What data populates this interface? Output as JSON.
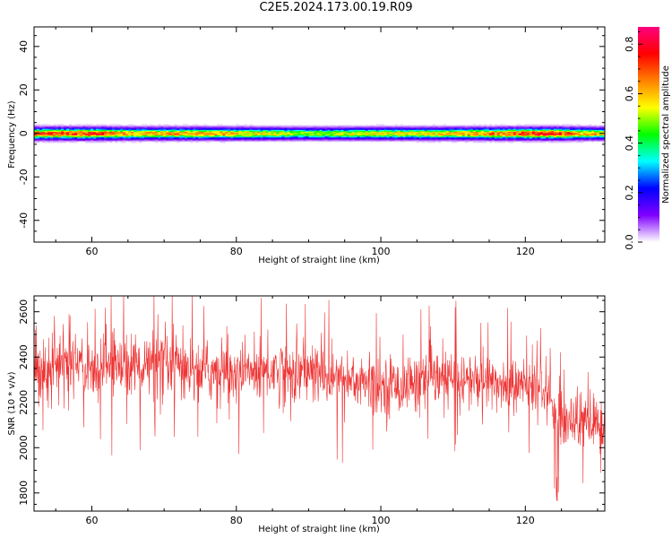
{
  "title": "C2E5.2024.173.00.19.R09",
  "chart_data": [
    {
      "type": "heatmap",
      "title": "C2E5.2024.173.00.19.R09",
      "xlabel": "Height of straight line (km)",
      "ylabel": "Frequency (Hz)",
      "xlim": [
        52,
        131
      ],
      "ylim": [
        -50,
        49
      ],
      "x_ticks": [
        "60",
        "80",
        "100",
        "120"
      ],
      "y_ticks": [
        "40",
        "20",
        "0",
        "-20",
        "-40"
      ],
      "grid": false,
      "signal_band_hz": [
        -4,
        4
      ],
      "intensity_profile": {
        "x": [
          52,
          60,
          66,
          72,
          78,
          84,
          88,
          92,
          96,
          100,
          104,
          110,
          116,
          120,
          124,
          128,
          131
        ],
        "peak": [
          0.7,
          0.72,
          0.6,
          0.62,
          0.6,
          0.55,
          0.5,
          0.48,
          0.52,
          0.55,
          0.55,
          0.58,
          0.66,
          0.7,
          0.75,
          0.6,
          0.55
        ]
      },
      "colorbar": {
        "label": "Normalized spectral amplitude",
        "range": [
          0.0,
          0.87
        ],
        "ticks": [
          "0.0",
          "0.2",
          "0.4",
          "0.6",
          "0.8"
        ],
        "colors": [
          "#ffffff",
          "#8000ff",
          "#0000ff",
          "#00ffff",
          "#00ff00",
          "#ffff00",
          "#ff8000",
          "#ff0000",
          "#ff0080"
        ]
      }
    },
    {
      "type": "line",
      "xlabel": "Height of straight line (km)",
      "ylabel": "SNR (10 * v/v)",
      "xlim": [
        52,
        131
      ],
      "ylim": [
        1720,
        2670
      ],
      "x_ticks": [
        "60",
        "80",
        "100",
        "120"
      ],
      "y_ticks": [
        "2600",
        "2400",
        "2200",
        "2000",
        "1800"
      ],
      "grid": false,
      "series": [
        {
          "color": "#ee3333",
          "x": [
            52,
            56,
            60,
            64,
            68,
            72,
            76,
            80,
            84,
            88,
            92,
            96,
            100,
            104,
            108,
            112,
            116,
            120,
            122,
            123.5,
            124.5,
            126,
            128,
            131
          ],
          "mean": [
            2350,
            2370,
            2360,
            2370,
            2360,
            2350,
            2340,
            2330,
            2340,
            2340,
            2320,
            2300,
            2270,
            2280,
            2300,
            2300,
            2280,
            2270,
            2260,
            2250,
            2110,
            2130,
            2120,
            2090
          ],
          "spread": [
            160,
            170,
            165,
            160,
            160,
            155,
            150,
            150,
            160,
            165,
            160,
            150,
            150,
            140,
            140,
            140,
            140,
            140,
            140,
            140,
            150,
            150,
            150,
            140
          ]
        }
      ]
    }
  ]
}
